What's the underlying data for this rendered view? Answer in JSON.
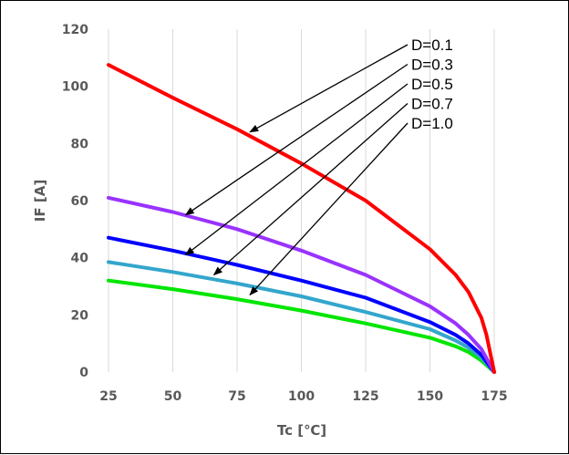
{
  "chart_data": {
    "type": "line",
    "xlabel": "Tc  [℃]",
    "ylabel": "IF  [A]",
    "xlim": [
      25,
      175
    ],
    "ylim": [
      0,
      120
    ],
    "xticks": [
      25,
      50,
      75,
      100,
      125,
      150,
      175
    ],
    "yticks": [
      0,
      20,
      40,
      60,
      80,
      100,
      120
    ],
    "grid": "vertical",
    "series": [
      {
        "name": "D=0.1",
        "color": "#ff0000",
        "x": [
          25,
          50,
          75,
          100,
          125,
          150,
          160,
          165,
          170,
          172,
          175
        ],
        "y": [
          107.5,
          96,
          85,
          73,
          60,
          43,
          34,
          28,
          19,
          13,
          0
        ]
      },
      {
        "name": "D=0.3",
        "color": "#9933ff",
        "x": [
          25,
          50,
          75,
          100,
          125,
          150,
          160,
          165,
          170,
          175
        ],
        "y": [
          61,
          56,
          50,
          42.5,
          34,
          23,
          17,
          13,
          8,
          0
        ]
      },
      {
        "name": "D=0.5",
        "color": "#0000ff",
        "x": [
          25,
          50,
          75,
          100,
          125,
          150,
          160,
          165,
          170,
          175
        ],
        "y": [
          47,
          42.5,
          37.5,
          32,
          26,
          17.5,
          13,
          10,
          6,
          0
        ]
      },
      {
        "name": "D=0.7",
        "color": "#33a6cc",
        "x": [
          25,
          50,
          75,
          100,
          125,
          150,
          160,
          165,
          170,
          175
        ],
        "y": [
          38.5,
          35,
          31,
          26.5,
          21,
          15,
          11,
          8.5,
          5,
          0
        ]
      },
      {
        "name": "D=1.0",
        "color": "#00e600",
        "x": [
          25,
          50,
          75,
          100,
          125,
          150,
          160,
          165,
          170,
          175
        ],
        "y": [
          32,
          29,
          25.5,
          21.5,
          17,
          12,
          9,
          7,
          4,
          0
        ]
      }
    ],
    "annotations": [
      {
        "label": "D=0.1",
        "x": 80,
        "y": 84
      },
      {
        "label": "D=0.3",
        "x": 55,
        "y": 55
      },
      {
        "label": "D=0.5",
        "x": 55,
        "y": 41
      },
      {
        "label": "D=0.7",
        "x": 66,
        "y": 34
      },
      {
        "label": "D=1.0",
        "x": 80,
        "y": 27
      }
    ]
  }
}
